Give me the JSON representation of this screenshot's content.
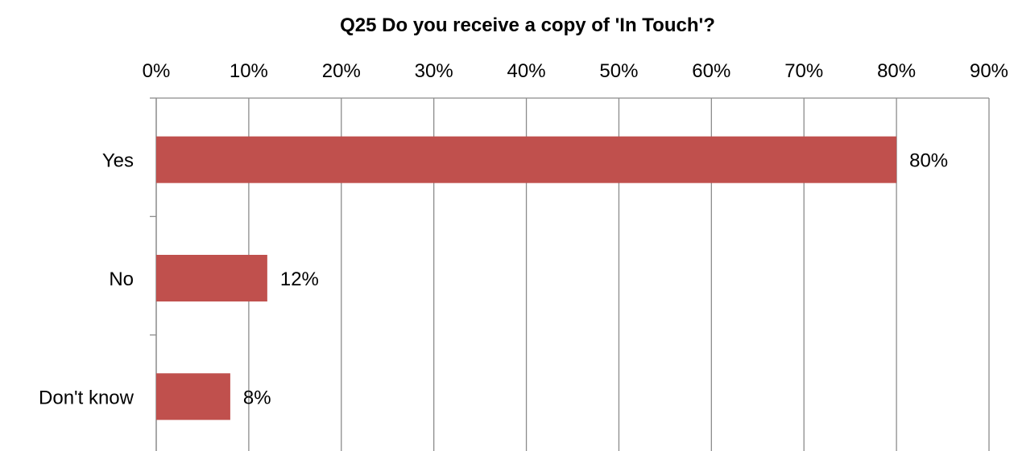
{
  "chart_data": {
    "type": "bar",
    "orientation": "horizontal",
    "title": "Q25  Do you receive a copy of 'In Touch'?",
    "categories": [
      "Yes",
      "No",
      "Don't know"
    ],
    "values": [
      80,
      12,
      8
    ],
    "data_labels": [
      "80%",
      "12%",
      "8%"
    ],
    "xlim": [
      0,
      90
    ],
    "xticks": [
      "0%",
      "10%",
      "20%",
      "30%",
      "40%",
      "50%",
      "60%",
      "70%",
      "80%",
      "90%"
    ],
    "x_axis_position": "top",
    "grid": true,
    "legend": "none",
    "bar_color": "#C0504D",
    "xlabel": "",
    "ylabel": ""
  }
}
